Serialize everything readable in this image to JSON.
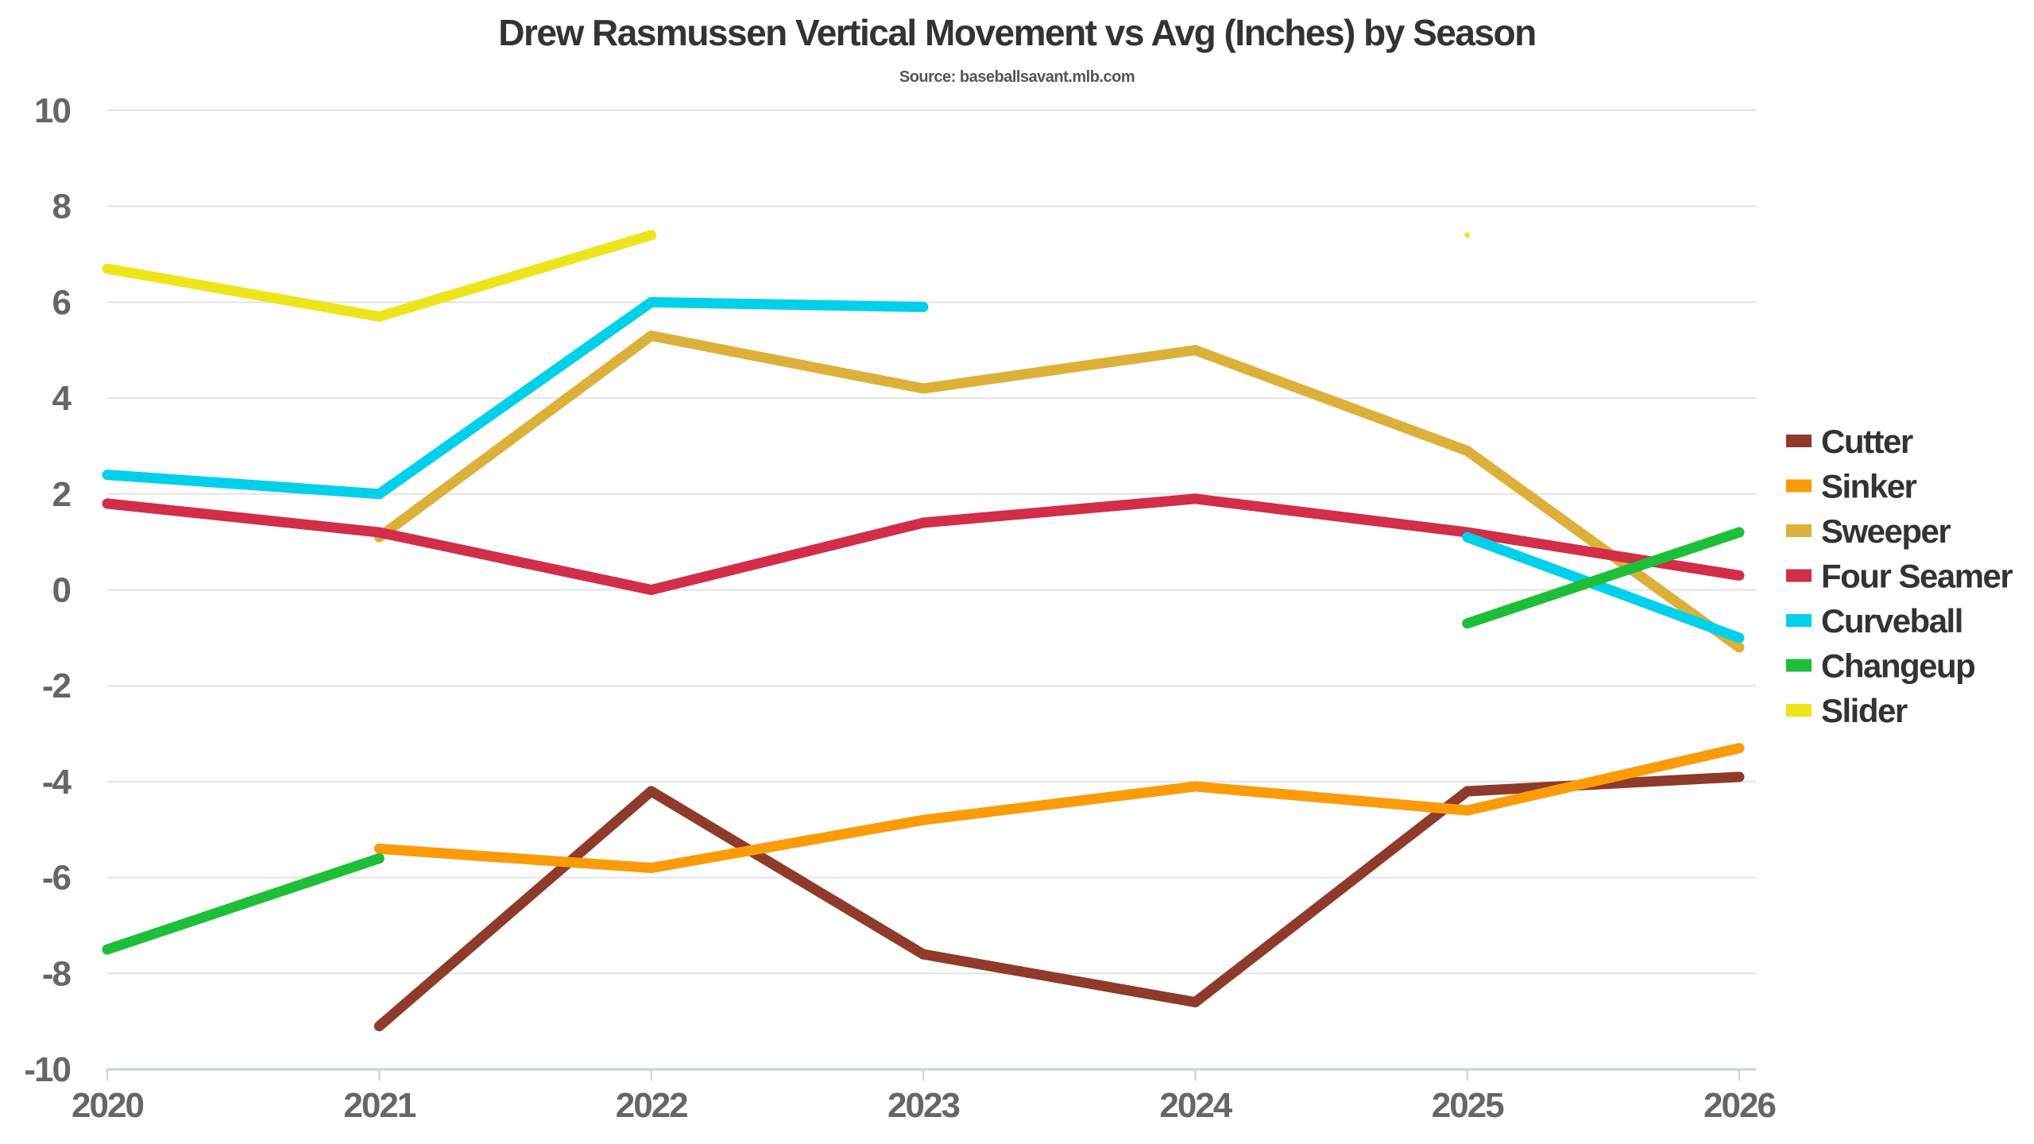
{
  "chart_data": {
    "type": "line",
    "title": "Drew Rasmussen Vertical Movement vs Avg (Inches) by Season",
    "subtitle": "Source: baseballsavant.mlb.com",
    "xlabel": "",
    "ylabel": "",
    "x": [
      "2020",
      "2021",
      "2022",
      "2023",
      "2024",
      "2025",
      "2026"
    ],
    "ylim": [
      -10,
      10
    ],
    "yticks": [
      10,
      8,
      6,
      4,
      2,
      0,
      -2,
      -4,
      -6,
      -8,
      -10
    ],
    "grid": true,
    "legend_position": "right",
    "series": [
      {
        "name": "Cutter",
        "color": "#8E3B2B",
        "values": [
          null,
          -9.1,
          -4.2,
          -7.6,
          -8.6,
          -4.2,
          -3.9
        ]
      },
      {
        "name": "Sinker",
        "color": "#FA9B0A",
        "values": [
          null,
          -5.4,
          -5.8,
          -4.8,
          -4.1,
          -4.6,
          -3.3
        ]
      },
      {
        "name": "Sweeper",
        "color": "#DBB13A",
        "values": [
          null,
          1.1,
          5.3,
          4.2,
          5.0,
          2.9,
          -1.2
        ]
      },
      {
        "name": "Four Seamer",
        "color": "#D22D49",
        "values": [
          1.8,
          1.2,
          0.0,
          1.4,
          1.9,
          1.2,
          0.3
        ]
      },
      {
        "name": "Curveball",
        "color": "#00D0EA",
        "values": [
          2.4,
          2.0,
          6.0,
          5.9,
          null,
          1.1,
          -1.0
        ]
      },
      {
        "name": "Changeup",
        "color": "#1DBE3A",
        "values": [
          -7.5,
          -5.6,
          null,
          null,
          null,
          -0.7,
          1.2
        ]
      },
      {
        "name": "Slider",
        "color": "#ECE51C",
        "values": [
          6.7,
          5.7,
          7.4,
          null,
          null,
          7.4,
          null
        ]
      }
    ]
  }
}
